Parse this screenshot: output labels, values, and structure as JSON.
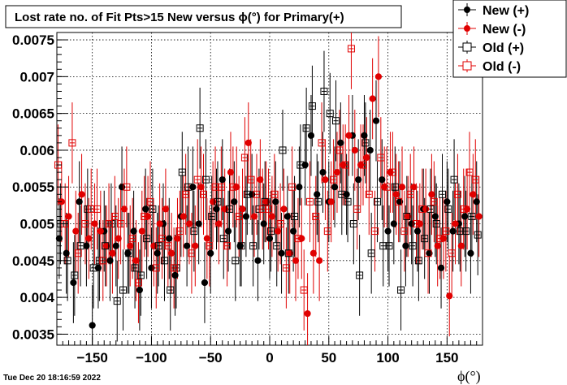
{
  "chart_data": {
    "type": "scatter",
    "title": "Lost rate no. of Fit Pts>15 New versus ϕ(°) for Primary(+)",
    "xlabel": "ϕ(°)",
    "ylabel": "",
    "xlim": [
      -180,
      180
    ],
    "ylim": [
      0.00335,
      0.0076
    ],
    "x_ticks": [
      -150,
      -100,
      -50,
      0,
      50,
      100,
      150
    ],
    "y_ticks": [
      0.0035,
      0.004,
      0.0045,
      0.005,
      0.0055,
      0.006,
      0.0065,
      0.007,
      0.0075
    ],
    "y_tick_labels": [
      "0.0035",
      "0.004",
      "0.0045",
      "0.005",
      "0.0055",
      "0.006",
      "0.0065",
      "0.007",
      "0.0075"
    ],
    "x_tick_labels": [
      "−150",
      "−100",
      "−50",
      "0",
      "50",
      "100",
      "150"
    ],
    "grid": true,
    "legend_position": "top-right",
    "timestamp": "Tue Dec 20 18:16:59 2022",
    "series": [
      {
        "name": "New (+)",
        "color": "#000000",
        "marker": "filled-circle",
        "x": [
          -178,
          -172,
          -166,
          -161,
          -155,
          -150,
          -145,
          -140,
          -135,
          -130,
          -125,
          -120,
          -115,
          -110,
          -105,
          -100,
          -95,
          -90,
          -85,
          -80,
          -75,
          -70,
          -65,
          -60,
          -55,
          -50,
          -45,
          -40,
          -35,
          -30,
          -25,
          -20,
          -15,
          -10,
          -5,
          0,
          5,
          10,
          15,
          20,
          25,
          30,
          35,
          40,
          45,
          50,
          55,
          60,
          65,
          70,
          75,
          80,
          85,
          90,
          95,
          100,
          105,
          110,
          115,
          120,
          125,
          130,
          135,
          140,
          145,
          150,
          155,
          160,
          165,
          170,
          175
        ],
        "y": [
          0.0048,
          0.0046,
          0.0042,
          0.0053,
          0.0047,
          0.00362,
          0.0044,
          0.0049,
          0.0045,
          0.0047,
          0.0055,
          0.0046,
          0.0049,
          0.0041,
          0.0052,
          0.0044,
          0.0046,
          0.005,
          0.0048,
          0.0043,
          0.0051,
          0.0047,
          0.0055,
          0.005,
          0.0042,
          0.0046,
          0.0052,
          0.0056,
          0.0049,
          0.0053,
          0.0047,
          0.0051,
          0.0054,
          0.0045,
          0.005,
          0.0048,
          0.0053,
          0.0046,
          0.0051,
          0.0049,
          0.0055,
          0.0058,
          0.0062,
          0.0054,
          0.0057,
          0.0053,
          0.0055,
          0.0061,
          0.0054,
          0.0062,
          0.0056,
          0.0062,
          0.006,
          0.0064,
          0.0056,
          0.0049,
          0.005,
          0.0053,
          0.0047,
          0.005,
          0.0049,
          0.0052,
          0.0046,
          0.0051,
          0.0044,
          0.0053,
          0.0049,
          0.005,
          0.0051,
          0.0046,
          0.0053
        ]
      },
      {
        "name": "New (-)",
        "color": "#e00000",
        "marker": "filled-circle",
        "x": [
          -176,
          -170,
          -164,
          -159,
          -153,
          -148,
          -143,
          -138,
          -133,
          -128,
          -123,
          -118,
          -113,
          -108,
          -103,
          -98,
          -93,
          -88,
          -83,
          -78,
          -73,
          -68,
          -63,
          -58,
          -53,
          -48,
          -43,
          -38,
          -33,
          -28,
          -23,
          -18,
          -13,
          -8,
          -3,
          2,
          7,
          12,
          17,
          22,
          27,
          32,
          37,
          42,
          47,
          52,
          57,
          62,
          67,
          72,
          77,
          82,
          87,
          92,
          97,
          102,
          107,
          112,
          117,
          122,
          127,
          132,
          137,
          142,
          147,
          152,
          157,
          162,
          167,
          172,
          177
        ],
        "y": [
          0.0053,
          0.0051,
          0.0049,
          0.0054,
          0.0048,
          0.005,
          0.0049,
          0.0047,
          0.0046,
          0.0048,
          0.0052,
          0.0047,
          0.0045,
          0.0049,
          0.0051,
          0.0047,
          0.005,
          0.0052,
          0.0046,
          0.0048,
          0.0051,
          0.005,
          0.0047,
          0.0055,
          0.0048,
          0.0053,
          0.005,
          0.0052,
          0.0057,
          0.0055,
          0.0052,
          0.0061,
          0.0051,
          0.0056,
          0.0053,
          0.0051,
          0.0049,
          0.0052,
          0.0046,
          0.0045,
          0.0048,
          0.00378,
          0.0046,
          0.0045,
          0.0056,
          0.0053,
          0.0057,
          0.0058,
          0.0062,
          0.006,
          0.0058,
          0.0059,
          0.0067,
          0.007,
          0.0055,
          0.0057,
          0.0054,
          0.0055,
          0.0051,
          0.0055,
          0.005,
          0.0052,
          0.0054,
          0.0047,
          0.0048,
          0.00402,
          0.005,
          0.0047,
          0.0052,
          0.0054,
          0.0051
        ]
      },
      {
        "name": "Old (+)",
        "color": "#000000",
        "marker": "open-square",
        "x": [
          -177,
          -171,
          -165,
          -160,
          -154,
          -149,
          -144,
          -139,
          -134,
          -129,
          -124,
          -119,
          -114,
          -109,
          -104,
          -99,
          -94,
          -89,
          -84,
          -79,
          -74,
          -69,
          -64,
          -59,
          -54,
          -49,
          -44,
          -39,
          -34,
          -29,
          -24,
          -19,
          -14,
          -9,
          -4,
          1,
          6,
          11,
          16,
          21,
          26,
          31,
          36,
          41,
          46,
          51,
          56,
          61,
          66,
          71,
          76,
          81,
          86,
          91,
          96,
          101,
          106,
          111,
          116,
          121,
          126,
          131,
          136,
          141,
          146,
          151,
          156,
          161,
          166,
          171,
          176
        ],
        "y": [
          0.005,
          0.0045,
          0.0043,
          0.0047,
          0.0052,
          0.0044,
          0.0045,
          0.0047,
          0.005,
          0.00395,
          0.0041,
          0.0046,
          0.0044,
          0.0043,
          0.0048,
          0.0052,
          0.0047,
          0.0045,
          0.0041,
          0.0044,
          0.0057,
          0.0055,
          0.0049,
          0.0063,
          0.0056,
          0.0051,
          0.0053,
          0.0048,
          0.0052,
          0.0045,
          0.0047,
          0.0054,
          0.0047,
          0.0052,
          0.0053,
          0.0049,
          0.0047,
          0.006,
          0.0046,
          0.0051,
          0.0058,
          0.0063,
          0.0066,
          0.0053,
          0.0068,
          0.0065,
          0.0064,
          0.0054,
          0.0053,
          0.005,
          0.0043,
          0.0061,
          0.0046,
          0.0053,
          0.0047,
          0.0047,
          0.0055,
          0.0041,
          0.0051,
          0.0047,
          0.0045,
          0.0048,
          0.0052,
          0.005,
          0.0054,
          0.0052,
          0.0056,
          0.0049,
          0.0049,
          0.0051,
          0.00485
        ]
      },
      {
        "name": "Old (-)",
        "color": "#e00000",
        "marker": "open-square",
        "x": [
          -179,
          -173,
          -167,
          -162,
          -156,
          -151,
          -146,
          -141,
          -136,
          -131,
          -126,
          -121,
          -116,
          -111,
          -106,
          -101,
          -96,
          -91,
          -86,
          -81,
          -76,
          -71,
          -66,
          -61,
          -56,
          -51,
          -46,
          -41,
          -36,
          -31,
          -26,
          -21,
          -16,
          -11,
          -6,
          -1,
          4,
          9,
          14,
          19,
          24,
          29,
          34,
          39,
          44,
          49,
          54,
          59,
          64,
          69,
          74,
          79,
          84,
          89,
          94,
          99,
          104,
          109,
          114,
          119,
          124,
          129,
          134,
          139,
          144,
          149,
          154,
          159,
          164,
          169,
          174
        ],
        "y": [
          0.0058,
          0.005,
          0.0061,
          0.0046,
          0.005,
          0.0052,
          0.0052,
          0.0045,
          0.005,
          0.0051,
          0.005,
          0.0055,
          0.0048,
          0.0042,
          0.0051,
          0.0053,
          0.0044,
          0.0048,
          0.0047,
          0.0044,
          0.0049,
          0.0054,
          0.0046,
          0.0056,
          0.0054,
          0.0047,
          0.0055,
          0.0055,
          0.0047,
          0.0055,
          0.0051,
          0.0059,
          0.0056,
          0.0054,
          0.0052,
          0.0052,
          0.0054,
          0.005,
          0.0044,
          0.0055,
          0.0048,
          0.0041,
          0.0053,
          0.0051,
          0.0061,
          0.0049,
          0.0056,
          0.006,
          0.0058,
          0.00738,
          0.0052,
          0.0058,
          0.0054,
          0.0049,
          0.0059,
          0.0055,
          0.0057,
          0.0053,
          0.0049,
          0.0054,
          0.005,
          0.0052,
          0.0046,
          0.0053,
          0.0048,
          0.0049,
          0.0046,
          0.0054,
          0.0052,
          0.0057,
          0.0056
        ]
      }
    ]
  }
}
